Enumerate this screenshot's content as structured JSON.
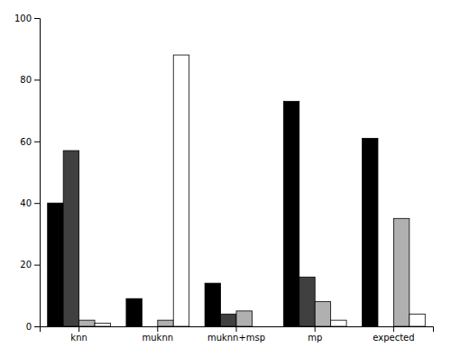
{
  "chart_data": {
    "type": "bar",
    "categories": [
      "knn",
      "muknn",
      "muknn+msp",
      "mp",
      "expected"
    ],
    "series": [
      {
        "color": "#000000",
        "values": [
          40,
          9,
          14,
          73,
          61
        ]
      },
      {
        "color": "#404040",
        "values": [
          57,
          0,
          4,
          16,
          0
        ]
      },
      {
        "color": "#b0b0b0",
        "values": [
          2,
          2,
          5,
          8,
          35
        ]
      },
      {
        "color": "#ffffff",
        "values": [
          1,
          88,
          0,
          2,
          4
        ]
      }
    ],
    "ylim": [
      0,
      100
    ],
    "yticks": [
      0,
      20,
      40,
      60,
      80,
      100
    ],
    "grid": false
  }
}
